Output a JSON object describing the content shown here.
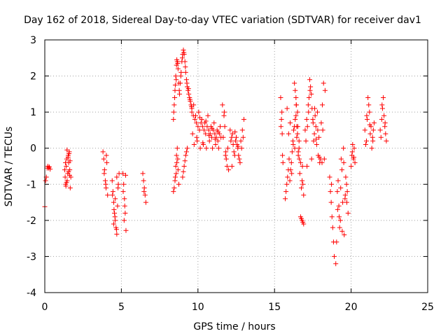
{
  "chart_data": {
    "type": "scatter",
    "title": "Day 162 of 2018, Sidereal Day-to-day VTEC variation (SDTVAR) for receiver dav1",
    "xlabel": "GPS time / hours",
    "ylabel": "SDTVAR / TECUs",
    "xlim": [
      0,
      25
    ],
    "ylim": [
      -4,
      3
    ],
    "xticks": [
      0,
      5,
      10,
      15,
      20,
      25
    ],
    "yticks": [
      -4,
      -3,
      -2,
      -1,
      0,
      1,
      2,
      3
    ],
    "grid": true,
    "marker": "+",
    "color": "#ff0000",
    "series": [
      {
        "name": "dav1",
        "segments": [
          {
            "x": [
              0.0,
              0.05,
              0.1,
              0.15,
              0.2,
              0.25,
              0.3,
              0.35
            ],
            "y": [
              -1.62,
              -0.9,
              -0.8,
              -0.55,
              -0.5,
              -0.55,
              -0.52,
              -0.58
            ]
          },
          {
            "x": [
              1.3,
              1.33,
              1.36,
              1.4,
              1.43,
              1.46,
              1.5,
              1.53,
              1.56,
              1.6,
              1.63,
              1.66,
              1.7,
              1.35,
              1.45,
              1.55,
              1.65,
              1.42,
              1.52,
              1.62,
              1.38,
              1.58
            ],
            "y": [
              -0.6,
              -0.8,
              -1.0,
              -0.5,
              -0.3,
              -0.9,
              -0.7,
              -0.2,
              -0.4,
              -0.1,
              -0.6,
              -1.1,
              -0.8,
              -0.4,
              -0.05,
              -0.65,
              -0.35,
              -0.95,
              -0.25,
              -0.75,
              -1.05,
              -0.15
            ]
          },
          {
            "x": [
              3.8,
              3.85,
              3.9,
              3.95,
              4.0,
              4.05,
              4.1,
              3.88,
              3.98,
              4.02
            ],
            "y": [
              -0.1,
              -0.3,
              -0.6,
              -0.9,
              -1.1,
              -0.4,
              -1.3,
              -0.7,
              -1.0,
              -0.2
            ]
          },
          {
            "x": [
              4.4,
              4.45,
              4.5,
              4.55,
              4.6,
              4.65,
              4.7,
              4.75,
              4.8,
              4.85,
              4.5,
              4.6,
              4.7,
              4.42,
              4.58,
              4.68,
              4.78,
              4.52
            ],
            "y": [
              -0.9,
              -1.2,
              -1.5,
              -1.8,
              -2.0,
              -2.2,
              -2.38,
              -1.6,
              -1.0,
              -0.7,
              -2.1,
              -1.4,
              -0.8,
              -1.3,
              -1.9,
              -2.25,
              -1.1,
              -1.7
            ]
          },
          {
            "x": [
              5.1,
              5.15,
              5.2,
              5.25,
              5.3,
              5.12,
              5.22,
              5.28,
              5.18
            ],
            "y": [
              -0.7,
              -1.0,
              -1.4,
              -1.8,
              -2.28,
              -1.2,
              -1.6,
              -0.75,
              -2.0
            ]
          },
          {
            "x": [
              6.4,
              6.45,
              6.5,
              6.55,
              6.6,
              6.48
            ],
            "y": [
              -0.7,
              -0.9,
              -1.1,
              -1.3,
              -1.5,
              -1.2
            ]
          },
          {
            "x": [
              8.4,
              8.5,
              8.55,
              8.6,
              8.65,
              8.7,
              8.75,
              8.45,
              8.58,
              8.68,
              8.52,
              8.62
            ],
            "y": [
              -1.2,
              -0.9,
              -0.5,
              -0.2,
              0.0,
              -0.6,
              -1.0,
              -1.1,
              -0.7,
              -0.3,
              -0.8,
              -0.4
            ]
          },
          {
            "x": [
              8.4,
              8.45,
              8.5,
              8.55,
              8.6,
              8.65,
              8.7,
              8.75,
              8.8,
              8.85,
              8.9,
              8.95,
              9.0,
              9.05,
              9.1,
              9.15,
              9.2,
              9.25,
              9.3,
              9.35,
              9.4,
              9.45,
              9.5,
              9.55,
              9.6,
              8.48,
              8.58,
              8.68,
              8.78,
              8.88,
              8.98,
              9.08,
              9.18,
              9.28,
              9.38,
              9.48,
              9.58,
              8.42,
              8.52,
              8.62
            ],
            "y": [
              0.8,
              1.2,
              1.6,
              2.0,
              2.3,
              2.4,
              2.2,
              1.8,
              1.5,
              1.8,
              2.1,
              2.4,
              2.6,
              2.72,
              2.6,
              2.4,
              2.1,
              1.9,
              1.7,
              1.6,
              1.5,
              1.4,
              1.3,
              1.2,
              1.1,
              1.4,
              1.9,
              2.35,
              1.6,
              2.0,
              2.5,
              2.65,
              2.25,
              1.8,
              1.65,
              1.35,
              1.15,
              1.0,
              1.75,
              2.45
            ]
          },
          {
            "x": [
              9.0,
              9.1,
              9.2,
              9.3,
              9.05,
              9.15,
              9.25
            ],
            "y": [
              -0.8,
              -0.5,
              -0.2,
              0.0,
              -0.65,
              -0.35,
              -0.1
            ]
          },
          {
            "x": [
              9.6,
              9.7,
              9.8,
              9.9,
              10.0,
              10.1,
              10.2,
              10.3,
              10.4,
              10.5,
              10.6,
              10.7,
              10.8,
              10.9,
              11.0,
              11.1,
              11.2,
              11.3,
              11.4,
              11.5,
              9.65,
              9.75,
              9.85,
              9.95,
              10.05,
              10.15,
              10.25,
              10.35,
              10.45,
              10.55,
              10.65,
              10.75,
              10.85,
              10.95,
              11.05,
              11.15,
              11.25,
              11.35,
              11.45,
              9.72,
              9.92,
              10.12,
              10.32,
              10.52,
              10.72,
              10.92,
              11.12,
              11.32
            ],
            "y": [
              1.0,
              0.9,
              0.8,
              0.7,
              0.6,
              0.5,
              0.7,
              0.6,
              0.5,
              0.4,
              0.6,
              0.5,
              0.4,
              0.3,
              0.5,
              0.4,
              0.3,
              0.2,
              0.4,
              0.3,
              0.4,
              0.1,
              0.9,
              0.2,
              1.0,
              0.0,
              0.8,
              0.1,
              0.7,
              0.0,
              0.9,
              0.2,
              0.6,
              0.0,
              0.7,
              0.1,
              0.5,
              0.0,
              0.6,
              1.2,
              0.3,
              0.85,
              0.15,
              0.75,
              0.35,
              0.55,
              0.25,
              0.45
            ]
          },
          {
            "x": [
              11.6,
              11.7,
              11.8,
              11.9,
              12.0,
              11.65,
              11.75,
              11.85,
              11.95,
              11.72,
              11.82
            ],
            "y": [
              1.2,
              0.9,
              -0.2,
              -0.5,
              -0.6,
              0.3,
              0.6,
              -0.3,
              0.0,
              1.0,
              -0.1
            ]
          },
          {
            "x": [
              12.1,
              12.2,
              12.3,
              12.4,
              12.5,
              12.6,
              12.7,
              12.8,
              12.9,
              13.0,
              12.15,
              12.25,
              12.35,
              12.45,
              12.55,
              12.65,
              12.75,
              12.85,
              12.95,
              12.22,
              12.42,
              12.62
            ],
            "y": [
              0.5,
              0.3,
              0.1,
              -0.2,
              0.3,
              0.0,
              -0.3,
              0.2,
              0.5,
              0.8,
              0.2,
              0.4,
              -0.1,
              0.2,
              0.1,
              -0.2,
              -0.4,
              0.0,
              0.3,
              -0.5,
              0.45,
              0.05
            ]
          },
          {
            "x": [
              15.4,
              15.45,
              15.5,
              15.55,
              15.42,
              15.52,
              15.48
            ],
            "y": [
              1.4,
              0.8,
              0.4,
              -0.4,
              0.6,
              -0.2,
              1.0
            ]
          },
          {
            "x": [
              15.7,
              15.8,
              15.9,
              16.0,
              16.1,
              16.2,
              16.3,
              16.4,
              16.5,
              16.6,
              15.75,
              15.85,
              15.95,
              16.05,
              16.15,
              16.25,
              16.35,
              16.45,
              16.55,
              15.82,
              16.02,
              16.22,
              16.42,
              15.92,
              16.12,
              16.32,
              16.52
            ],
            "y": [
              -1.4,
              -1.0,
              -0.6,
              -0.9,
              -0.4,
              0.2,
              0.6,
              0.9,
              0.4,
              0.0,
              -1.2,
              -0.8,
              -0.3,
              -0.6,
              -0.1,
              0.5,
              0.8,
              0.3,
              -0.2,
              1.1,
              0.7,
              0.1,
              1.2,
              0.4,
              -0.7,
              0.0,
              0.6
            ]
          },
          {
            "x": [
              16.3,
              16.4,
              16.5,
              16.6,
              16.7,
              16.8,
              16.9,
              16.35,
              16.45,
              16.55,
              16.65,
              16.75,
              16.85,
              16.42,
              16.62,
              16.82
            ],
            "y": [
              1.8,
              1.4,
              1.0,
              0.2,
              -0.4,
              -0.9,
              -1.3,
              1.6,
              0.6,
              -0.1,
              -0.7,
              -1.1,
              -1.0,
              1.2,
              -0.3,
              -0.5
            ]
          },
          {
            "x": [
              16.7,
              16.8,
              16.9,
              16.75,
              16.85
            ],
            "y": [
              -1.9,
              -2.0,
              -2.1,
              -1.95,
              -2.05
            ]
          },
          {
            "x": [
              17.0,
              17.1,
              17.2,
              17.3,
              17.4,
              17.5,
              17.6,
              17.7,
              17.8,
              17.9,
              18.0,
              18.1,
              18.2,
              18.3,
              17.05,
              17.15,
              17.25,
              17.35,
              17.45,
              17.55,
              17.65,
              17.75,
              17.85,
              17.95,
              18.05,
              18.15,
              18.25,
              17.12,
              17.32,
              17.52,
              17.72,
              17.92,
              18.12,
              17.22,
              17.42,
              17.62,
              17.82
            ],
            "y": [
              0.5,
              0.8,
              1.2,
              1.9,
              1.5,
              0.8,
              0.4,
              0.6,
              1.0,
              0.3,
              -0.3,
              -0.4,
              1.8,
              1.6,
              0.2,
              0.6,
              1.4,
              1.7,
              1.1,
              0.2,
              0.9,
              0.1,
              -0.2,
              -0.4,
              0.7,
              0.5,
              -0.3,
              -0.5,
              1.6,
              0.7,
              0.25,
              -0.25,
              1.2,
              1.0,
              -0.3,
              1.1,
              0.5
            ]
          },
          {
            "x": [
              18.6,
              18.7,
              18.8,
              18.9,
              18.65,
              18.75,
              18.85,
              18.72
            ],
            "y": [
              -0.8,
              -1.5,
              -2.2,
              -3.0,
              -1.2,
              -1.9,
              -2.6,
              -1.0
            ]
          },
          {
            "x": [
              19.0,
              19.1,
              19.2,
              19.3,
              19.4,
              19.5,
              19.6,
              19.7,
              19.8,
              19.05,
              19.15,
              19.25,
              19.35,
              19.45,
              19.55,
              19.65,
              19.75,
              19.12,
              19.32,
              19.52,
              19.72,
              19.22,
              19.42,
              19.62
            ],
            "y": [
              -3.2,
              -1.2,
              -1.6,
              -2.0,
              -0.6,
              0.0,
              -1.4,
              -1.0,
              -1.8,
              -2.6,
              -0.9,
              -2.2,
              -0.3,
              -1.5,
              -2.4,
              -0.8,
              -1.2,
              -1.7,
              -1.1,
              -0.4,
              -1.5,
              -1.9,
              -2.3,
              -1.3
            ]
          },
          {
            "x": [
              20.0,
              20.05,
              20.1,
              20.15,
              20.2,
              20.25,
              20.08,
              20.18
            ],
            "y": [
              -0.5,
              -0.2,
              0.1,
              -0.3,
              0.0,
              -0.4,
              -0.1,
              -0.25
            ]
          },
          {
            "x": [
              20.9,
              21.0,
              21.1,
              21.2,
              21.3,
              21.4,
              21.5,
              20.95,
              21.05,
              21.15,
              21.25,
              21.35,
              21.45,
              21.02,
              21.22,
              21.42
            ],
            "y": [
              0.5,
              0.2,
              1.4,
              1.0,
              0.6,
              0.3,
              0.7,
              0.1,
              0.8,
              1.2,
              0.4,
              0.0,
              0.5,
              0.9,
              0.65,
              0.2
            ]
          },
          {
            "x": [
              21.9,
              22.0,
              22.1,
              22.2,
              22.3,
              21.95,
              22.05,
              22.15,
              22.25,
              22.02,
              22.22
            ],
            "y": [
              0.5,
              0.8,
              1.4,
              0.6,
              0.2,
              0.3,
              1.1,
              0.9,
              0.4,
              1.2,
              0.7
            ]
          }
        ]
      }
    ]
  }
}
